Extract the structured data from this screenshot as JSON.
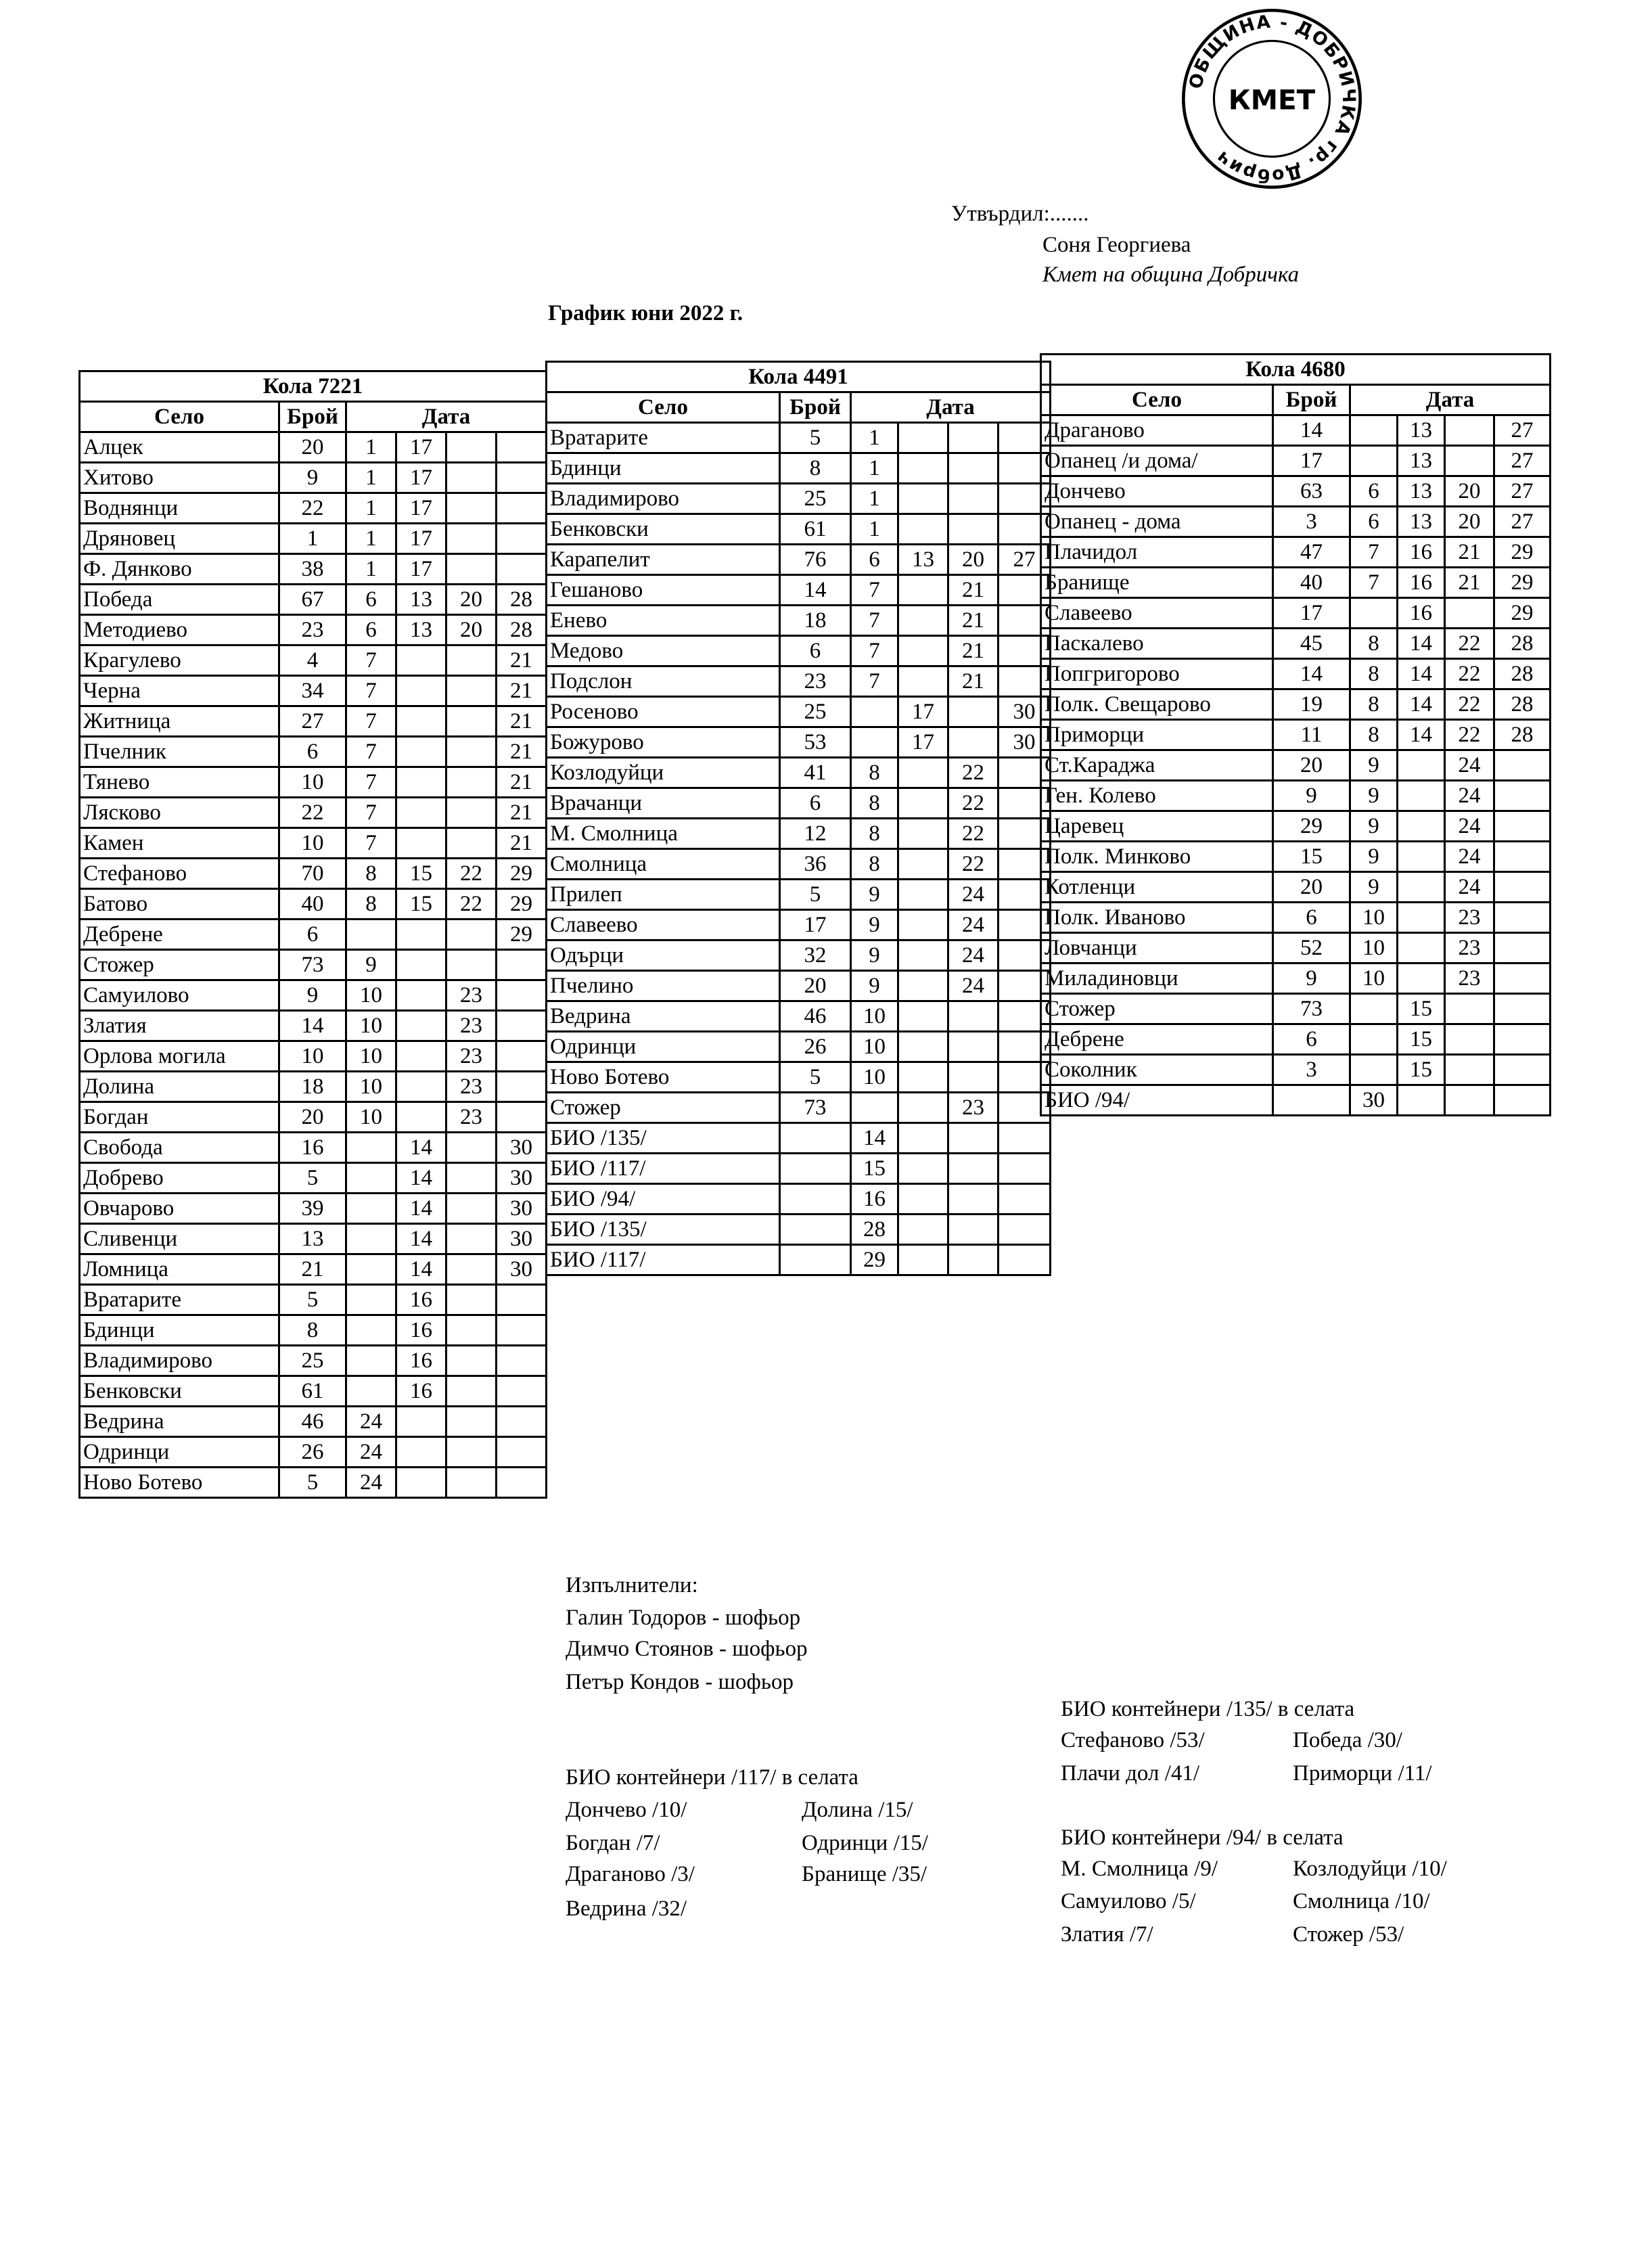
{
  "approval": {
    "approved_by": "Утвърдил:.......",
    "name": "Соня Георгиева",
    "position": "Кмет  на община Добричка",
    "stamp_text": "ОБЩИНА - ДОБРИЧКА гр. Добрич",
    "stamp_center": "КМЕТ"
  },
  "title": "График юни 2022 г.",
  "headers": {
    "village": "Село",
    "count": "Брой",
    "date": "Дата"
  },
  "tables": [
    {
      "title": "Кола 7221",
      "rows": [
        {
          "village": "Алцек",
          "count": "20",
          "dates": [
            "1",
            "17",
            "",
            ""
          ]
        },
        {
          "village": "Хитово",
          "count": "9",
          "dates": [
            "1",
            "17",
            "",
            ""
          ]
        },
        {
          "village": "Воднянци",
          "count": "22",
          "dates": [
            "1",
            "17",
            "",
            ""
          ]
        },
        {
          "village": "Дряновец",
          "count": "1",
          "dates": [
            "1",
            "17",
            "",
            ""
          ]
        },
        {
          "village": "Ф. Дянково",
          "count": "38",
          "dates": [
            "1",
            "17",
            "",
            ""
          ]
        },
        {
          "village": "Победа",
          "count": "67",
          "dates": [
            "6",
            "13",
            "20",
            "28"
          ]
        },
        {
          "village": "Методиево",
          "count": "23",
          "dates": [
            "6",
            "13",
            "20",
            "28"
          ]
        },
        {
          "village": "Крагулево",
          "count": "4",
          "dates": [
            "7",
            "",
            "",
            "21"
          ]
        },
        {
          "village": "Черна",
          "count": "34",
          "dates": [
            "7",
            "",
            "",
            "21"
          ]
        },
        {
          "village": "Житница",
          "count": "27",
          "dates": [
            "7",
            "",
            "",
            "21"
          ]
        },
        {
          "village": "Пчелник",
          "count": "6",
          "dates": [
            "7",
            "",
            "",
            "21"
          ]
        },
        {
          "village": "Тянево",
          "count": "10",
          "dates": [
            "7",
            "",
            "",
            "21"
          ]
        },
        {
          "village": "Лясково",
          "count": "22",
          "dates": [
            "7",
            "",
            "",
            "21"
          ]
        },
        {
          "village": "Камен",
          "count": "10",
          "dates": [
            "7",
            "",
            "",
            "21"
          ]
        },
        {
          "village": "Стефаново",
          "count": "70",
          "dates": [
            "8",
            "15",
            "22",
            "29"
          ]
        },
        {
          "village": "Батово",
          "count": "40",
          "dates": [
            "8",
            "15",
            "22",
            "29"
          ]
        },
        {
          "village": "Дебрене",
          "count": "6",
          "dates": [
            "",
            "",
            "",
            "29"
          ]
        },
        {
          "village": "Стожер",
          "count": "73",
          "dates": [
            "9",
            "",
            "",
            ""
          ]
        },
        {
          "village": "Самуилово",
          "count": "9",
          "dates": [
            "10",
            "",
            "23",
            ""
          ]
        },
        {
          "village": "Златия",
          "count": "14",
          "dates": [
            "10",
            "",
            "23",
            ""
          ]
        },
        {
          "village": "Орлова могила",
          "count": "10",
          "dates": [
            "10",
            "",
            "23",
            ""
          ]
        },
        {
          "village": "Долина",
          "count": "18",
          "dates": [
            "10",
            "",
            "23",
            ""
          ]
        },
        {
          "village": "Богдан",
          "count": "20",
          "dates": [
            "10",
            "",
            "23",
            ""
          ]
        },
        {
          "village": "Свобода",
          "count": "16",
          "dates": [
            "",
            "14",
            "",
            "30"
          ]
        },
        {
          "village": "Добрево",
          "count": "5",
          "dates": [
            "",
            "14",
            "",
            "30"
          ]
        },
        {
          "village": "Овчарово",
          "count": "39",
          "dates": [
            "",
            "14",
            "",
            "30"
          ]
        },
        {
          "village": "Сливенци",
          "count": "13",
          "dates": [
            "",
            "14",
            "",
            "30"
          ]
        },
        {
          "village": "Ломница",
          "count": "21",
          "dates": [
            "",
            "14",
            "",
            "30"
          ]
        },
        {
          "village": "Вратарите",
          "count": "5",
          "dates": [
            "",
            "16",
            "",
            ""
          ]
        },
        {
          "village": "Бдинци",
          "count": "8",
          "dates": [
            "",
            "16",
            "",
            ""
          ]
        },
        {
          "village": "Владимирово",
          "count": "25",
          "dates": [
            "",
            "16",
            "",
            ""
          ]
        },
        {
          "village": "Бенковски",
          "count": "61",
          "dates": [
            "",
            "16",
            "",
            ""
          ]
        },
        {
          "village": "Ведрина",
          "count": "46",
          "dates": [
            "24",
            "",
            "",
            ""
          ]
        },
        {
          "village": "Одринци",
          "count": "26",
          "dates": [
            "24",
            "",
            "",
            ""
          ]
        },
        {
          "village": "Ново Ботево",
          "count": "5",
          "dates": [
            "24",
            "",
            "",
            ""
          ]
        }
      ]
    },
    {
      "title": "Кола 4491",
      "rows": [
        {
          "village": "Вратарите",
          "count": "5",
          "dates": [
            "1",
            "",
            "",
            ""
          ]
        },
        {
          "village": "Бдинци",
          "count": "8",
          "dates": [
            "1",
            "",
            "",
            ""
          ]
        },
        {
          "village": "Владимирово",
          "count": "25",
          "dates": [
            "1",
            "",
            "",
            ""
          ]
        },
        {
          "village": "Бенковски",
          "count": "61",
          "dates": [
            "1",
            "",
            "",
            ""
          ]
        },
        {
          "village": "Карапелит",
          "count": "76",
          "dates": [
            "6",
            "13",
            "20",
            "27"
          ]
        },
        {
          "village": "Гешаново",
          "count": "14",
          "dates": [
            "7",
            "",
            "21",
            ""
          ]
        },
        {
          "village": "Енево",
          "count": "18",
          "dates": [
            "7",
            "",
            "21",
            ""
          ]
        },
        {
          "village": "Медово",
          "count": "6",
          "dates": [
            "7",
            "",
            "21",
            ""
          ]
        },
        {
          "village": "Подслон",
          "count": "23",
          "dates": [
            "7",
            "",
            "21",
            ""
          ]
        },
        {
          "village": "Росеново",
          "count": "25",
          "dates": [
            "",
            "17",
            "",
            "30"
          ]
        },
        {
          "village": "Божурово",
          "count": "53",
          "dates": [
            "",
            "17",
            "",
            "30"
          ]
        },
        {
          "village": "Козлодуйци",
          "count": "41",
          "dates": [
            "8",
            "",
            "22",
            ""
          ]
        },
        {
          "village": "Врачанци",
          "count": "6",
          "dates": [
            "8",
            "",
            "22",
            ""
          ]
        },
        {
          "village": "М. Смолница",
          "count": "12",
          "dates": [
            "8",
            "",
            "22",
            ""
          ]
        },
        {
          "village": "Смолница",
          "count": "36",
          "dates": [
            "8",
            "",
            "22",
            ""
          ]
        },
        {
          "village": "Прилеп",
          "count": "5",
          "dates": [
            "9",
            "",
            "24",
            ""
          ]
        },
        {
          "village": "Славеево",
          "count": "17",
          "dates": [
            "9",
            "",
            "24",
            ""
          ]
        },
        {
          "village": "Одърци",
          "count": "32",
          "dates": [
            "9",
            "",
            "24",
            ""
          ]
        },
        {
          "village": "Пчелино",
          "count": "20",
          "dates": [
            "9",
            "",
            "24",
            ""
          ]
        },
        {
          "village": "Ведрина",
          "count": "46",
          "dates": [
            "10",
            "",
            "",
            ""
          ]
        },
        {
          "village": "Одринци",
          "count": "26",
          "dates": [
            "10",
            "",
            "",
            ""
          ]
        },
        {
          "village": "Ново Ботево",
          "count": "5",
          "dates": [
            "10",
            "",
            "",
            ""
          ]
        },
        {
          "village": "Стожер",
          "count": "73",
          "dates": [
            "",
            "",
            "23",
            ""
          ]
        },
        {
          "village": "БИО /135/",
          "count": "",
          "dates": [
            "14",
            "",
            "",
            ""
          ]
        },
        {
          "village": "БИО /117/",
          "count": "",
          "dates": [
            "15",
            "",
            "",
            ""
          ]
        },
        {
          "village": "БИО /94/",
          "count": "",
          "dates": [
            "16",
            "",
            "",
            ""
          ]
        },
        {
          "village": "БИО /135/",
          "count": "",
          "dates": [
            "28",
            "",
            "",
            ""
          ]
        },
        {
          "village": "БИО /117/",
          "count": "",
          "dates": [
            "29",
            "",
            "",
            ""
          ]
        }
      ]
    },
    {
      "title": "Кола 4680",
      "rows": [
        {
          "village": "Драганово",
          "count": "14",
          "dates": [
            "",
            "13",
            "",
            "27"
          ]
        },
        {
          "village": "Опанец /и дома/",
          "count": "17",
          "dates": [
            "",
            "13",
            "",
            "27"
          ]
        },
        {
          "village": "Дончево",
          "count": "63",
          "dates": [
            "6",
            "13",
            "20",
            "27"
          ]
        },
        {
          "village": "Опанец - дома",
          "count": "3",
          "dates": [
            "6",
            "13",
            "20",
            "27"
          ]
        },
        {
          "village": "Плачидол",
          "count": "47",
          "dates": [
            "7",
            "16",
            "21",
            "29"
          ]
        },
        {
          "village": "Бранище",
          "count": "40",
          "dates": [
            "7",
            "16",
            "21",
            "29"
          ]
        },
        {
          "village": "Славеево",
          "count": "17",
          "dates": [
            "",
            "16",
            "",
            "29"
          ]
        },
        {
          "village": "Паскалево",
          "count": "45",
          "dates": [
            "8",
            "14",
            "22",
            "28"
          ]
        },
        {
          "village": "Попгригорово",
          "count": "14",
          "dates": [
            "8",
            "14",
            "22",
            "28"
          ]
        },
        {
          "village": "Полк. Свещарово",
          "count": "19",
          "dates": [
            "8",
            "14",
            "22",
            "28"
          ]
        },
        {
          "village": "Приморци",
          "count": "11",
          "dates": [
            "8",
            "14",
            "22",
            "28"
          ]
        },
        {
          "village": "Ст.Караджа",
          "count": "20",
          "dates": [
            "9",
            "",
            "24",
            ""
          ]
        },
        {
          "village": "Ген. Колево",
          "count": "9",
          "dates": [
            "9",
            "",
            "24",
            ""
          ]
        },
        {
          "village": "Царевец",
          "count": "29",
          "dates": [
            "9",
            "",
            "24",
            ""
          ]
        },
        {
          "village": "Полк. Минково",
          "count": "15",
          "dates": [
            "9",
            "",
            "24",
            ""
          ]
        },
        {
          "village": "Котленци",
          "count": "20",
          "dates": [
            "9",
            "",
            "24",
            ""
          ]
        },
        {
          "village": "Полк. Иваново",
          "count": "6",
          "dates": [
            "10",
            "",
            "23",
            ""
          ]
        },
        {
          "village": "Ловчанци",
          "count": "52",
          "dates": [
            "10",
            "",
            "23",
            ""
          ]
        },
        {
          "village": "Миладиновци",
          "count": "9",
          "dates": [
            "10",
            "",
            "23",
            ""
          ]
        },
        {
          "village": "Стожер",
          "count": "73",
          "dates": [
            "",
            "15",
            "",
            ""
          ]
        },
        {
          "village": "Дебрене",
          "count": "6",
          "dates": [
            "",
            "15",
            "",
            ""
          ]
        },
        {
          "village": "Соколник",
          "count": "3",
          "dates": [
            "",
            "15",
            "",
            ""
          ]
        },
        {
          "village": "БИО /94/",
          "count": "",
          "dates": [
            "30",
            "",
            "",
            ""
          ]
        }
      ]
    }
  ],
  "executors": {
    "heading": "Изпълнители:",
    "people": [
      "Галин Тодоров - шофьор",
      "Димчо Стоянов - шофьор",
      "Петър Кондов - шофьор"
    ]
  },
  "bio_117": {
    "heading": "БИО контейнери /117/ в селата",
    "col1": [
      "Дончево /10/",
      "Богдан /7/",
      "Драганово /3/",
      "Ведрина /32/"
    ],
    "col2": [
      "Долина /15/",
      "Одринци /15/",
      "Бранище /35/"
    ]
  },
  "bio_135": {
    "heading": "БИО контейнери /135/ в селата",
    "col1": [
      "Стефаново /53/",
      "Плачи дол /41/"
    ],
    "col2": [
      "Победа /30/",
      "Приморци /11/"
    ]
  },
  "bio_94": {
    "heading": "БИО контейнери /94/ в селата",
    "col1": [
      "М. Смолница /9/",
      "Самуилово /5/",
      "Златия /7/"
    ],
    "col2": [
      "Козлодуйци /10/",
      "Смолница /10/",
      "Стожер /53/"
    ]
  }
}
